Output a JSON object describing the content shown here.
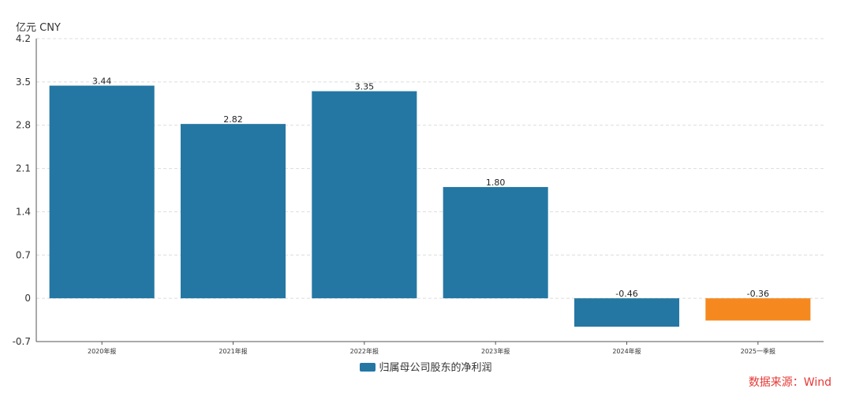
{
  "chart_data": {
    "type": "bar",
    "unit_label": "亿元 CNY",
    "categories": [
      "2020年报",
      "2021年报",
      "2022年报",
      "2023年报",
      "2024年报",
      "2025一季报"
    ],
    "value_labels": [
      "3.44",
      "2.82",
      "3.35",
      "1.80",
      "-0.46",
      "-0.36"
    ],
    "series": [
      {
        "name": "归属母公司股东的净利润",
        "values": [
          3.44,
          2.82,
          3.35,
          1.8,
          -0.46,
          -0.36
        ],
        "colors": [
          "#2477a3",
          "#2477a3",
          "#2477a3",
          "#2477a3",
          "#2477a3",
          "#f5891f"
        ]
      }
    ],
    "yticks": [
      "4.2",
      "3.5",
      "2.8",
      "2.1",
      "1.4",
      "0.7",
      "0",
      "-0.7"
    ],
    "ylim": [
      -0.7,
      4.2
    ],
    "grid": true,
    "legend_position": "bottom"
  },
  "source": "数据来源：Wind"
}
